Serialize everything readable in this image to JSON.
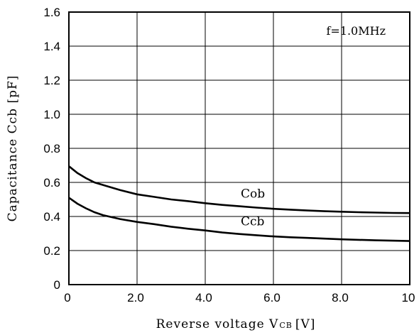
{
  "chart_data": {
    "type": "line",
    "xlabel": "Reverse voltage V",
    "xlabel_sub": "CB",
    "xlabel_unit": "[V]",
    "ylabel": "Capacitance Ccb [pF]",
    "xlim": [
      0,
      10
    ],
    "ylim": [
      0,
      1.6
    ],
    "grid": true,
    "x_ticks": [
      0,
      2,
      4,
      6,
      8,
      10
    ],
    "x_tick_labels": [
      "0",
      "2.0",
      "4.0",
      "6.0",
      "8.0",
      "10"
    ],
    "y_ticks": [
      0,
      0.2,
      0.4,
      0.6,
      0.8,
      1.0,
      1.2,
      1.4,
      1.6
    ],
    "y_tick_labels": [
      "0",
      "0.2",
      "0.4",
      "0.6",
      "0.8",
      "1.0",
      "1.2",
      "1.4",
      "1.6"
    ],
    "annotation": "f=1.0MHz",
    "series": [
      {
        "name": "Cob",
        "x": [
          0,
          0.25,
          0.5,
          0.75,
          1,
          1.5,
          2,
          2.5,
          3,
          3.5,
          4,
          4.5,
          5,
          5.5,
          6,
          6.5,
          7,
          7.5,
          8,
          8.5,
          9,
          9.5,
          10
        ],
        "y": [
          0.695,
          0.655,
          0.625,
          0.6,
          0.585,
          0.555,
          0.53,
          0.515,
          0.5,
          0.49,
          0.478,
          0.468,
          0.46,
          0.452,
          0.445,
          0.44,
          0.435,
          0.431,
          0.428,
          0.425,
          0.423,
          0.421,
          0.42
        ]
      },
      {
        "name": "Ccb",
        "x": [
          0,
          0.25,
          0.5,
          0.75,
          1,
          1.5,
          2,
          2.5,
          3,
          3.5,
          4,
          4.5,
          5,
          5.5,
          6,
          6.5,
          7,
          7.5,
          8,
          8.5,
          9,
          9.5,
          10
        ],
        "y": [
          0.51,
          0.475,
          0.448,
          0.425,
          0.408,
          0.385,
          0.368,
          0.355,
          0.34,
          0.328,
          0.318,
          0.306,
          0.297,
          0.29,
          0.283,
          0.278,
          0.274,
          0.27,
          0.266,
          0.263,
          0.26,
          0.258,
          0.256
        ]
      }
    ]
  }
}
